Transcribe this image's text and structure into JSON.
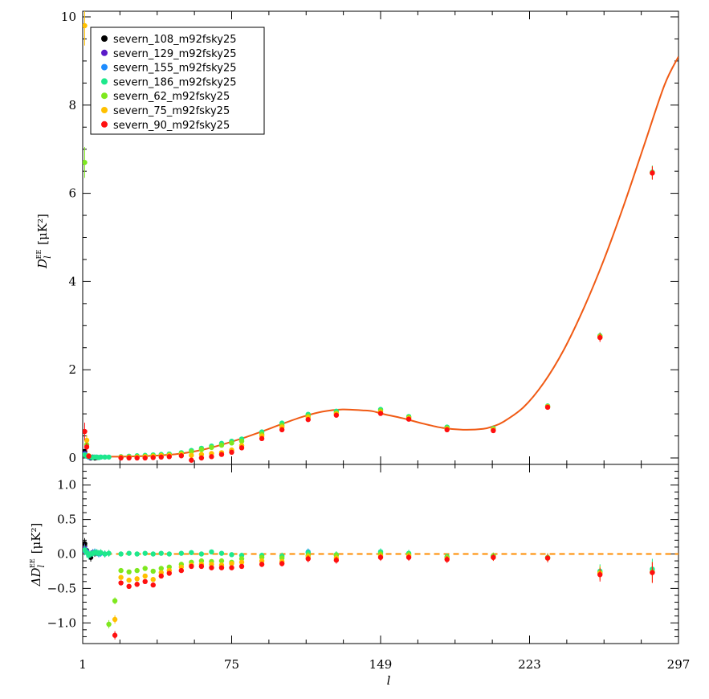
{
  "chart_data": [
    {
      "type": "scatter",
      "panel": "top",
      "ylabel_main": "D",
      "ylabel_sub": "l",
      "ylabel_sup": "EE",
      "ylabel_unit": "[μK²]",
      "xlim": [
        1,
        297
      ],
      "ylim": [
        0,
        10
      ],
      "yticks": [
        0,
        2,
        4,
        6,
        8,
        10
      ],
      "grid": false,
      "legend_position": "top-left",
      "model_curve": {
        "color": "#f05a14",
        "x": [
          1,
          5,
          10,
          20,
          30,
          40,
          50,
          60,
          70,
          80,
          90,
          100,
          110,
          120,
          130,
          140,
          145,
          150,
          160,
          170,
          180,
          190,
          200,
          205,
          210,
          220,
          230,
          240,
          250,
          260,
          270,
          280,
          290,
          297
        ],
        "y": [
          0.05,
          0.03,
          0.03,
          0.03,
          0.04,
          0.06,
          0.1,
          0.18,
          0.3,
          0.44,
          0.6,
          0.77,
          0.93,
          1.05,
          1.1,
          1.08,
          1.06,
          1.0,
          0.9,
          0.78,
          0.68,
          0.64,
          0.66,
          0.72,
          0.82,
          1.15,
          1.7,
          2.45,
          3.4,
          4.5,
          5.75,
          7.1,
          8.45,
          9.1
        ]
      },
      "series": [
        {
          "name": "severn_108_m92fsky25",
          "color": "#000000",
          "x": [
            2,
            3,
            4,
            5,
            6,
            7,
            8
          ],
          "y": [
            0.15,
            0.05,
            0.03,
            0.0,
            0.02,
            0.0,
            0.01
          ],
          "err": [
            0.05,
            0.05,
            0.05,
            0.04,
            0.04,
            0.04,
            0.04
          ]
        },
        {
          "name": "severn_129_m92fsky25",
          "color": "#5a1ac8",
          "x": [
            2,
            3,
            4,
            5,
            6
          ],
          "y": [
            0.1,
            0.04,
            0.02,
            0.01,
            0.02
          ],
          "err": [
            0.05,
            0.05,
            0.05,
            0.04,
            0.04
          ]
        },
        {
          "name": "severn_155_m92fsky25",
          "color": "#1e8cff",
          "x": [
            2,
            3,
            4,
            5,
            6,
            7,
            8,
            9,
            10,
            12
          ],
          "y": [
            0.08,
            0.05,
            0.02,
            0.02,
            0.01,
            0.02,
            0.02,
            0.01,
            0.02,
            0.02
          ],
          "err": [
            0.05,
            0.05,
            0.05,
            0.04,
            0.04,
            0.04,
            0.04,
            0.04,
            0.04,
            0.04
          ]
        },
        {
          "name": "severn_186_m92fsky25",
          "color": "#1ee88c",
          "x": [
            2,
            3,
            4,
            5,
            6,
            7,
            8,
            9,
            10,
            12,
            14,
            20,
            24,
            28,
            32,
            36,
            40,
            44,
            50,
            55,
            60,
            65,
            70,
            75,
            80,
            90,
            100,
            113,
            127,
            149,
            163,
            182,
            205,
            232,
            258,
            284
          ],
          "y": [
            0.07,
            0.04,
            0.03,
            0.02,
            0.01,
            0.02,
            0.02,
            0.01,
            0.02,
            0.02,
            0.02,
            0.03,
            0.04,
            0.05,
            0.06,
            0.07,
            0.08,
            0.09,
            0.12,
            0.17,
            0.22,
            0.27,
            0.33,
            0.38,
            0.43,
            0.59,
            0.79,
            0.99,
            1.06,
            1.1,
            0.94,
            0.7,
            0.67,
            1.18,
            2.77,
            6.48
          ],
          "err": [
            0.05,
            0.05,
            0.05,
            0.04,
            0.04,
            0.04,
            0.04,
            0.04,
            0.04,
            0.04,
            0.04,
            0.03,
            0.03,
            0.03,
            0.03,
            0.03,
            0.03,
            0.03,
            0.03,
            0.03,
            0.03,
            0.03,
            0.03,
            0.03,
            0.03,
            0.03,
            0.04,
            0.04,
            0.04,
            0.04,
            0.04,
            0.04,
            0.04,
            0.05,
            0.08,
            0.15
          ]
        },
        {
          "name": "severn_62_m92fsky25",
          "color": "#7ee81e",
          "x": [
            2,
            3,
            20,
            24,
            28,
            32,
            36,
            40,
            44,
            50,
            55,
            60,
            65,
            70,
            75,
            80,
            90,
            100,
            113,
            127,
            149,
            163,
            182,
            205,
            232,
            258,
            284
          ],
          "y": [
            6.7,
            0.3,
            0.02,
            0.02,
            0.03,
            0.04,
            0.05,
            0.06,
            0.07,
            0.1,
            0.14,
            0.19,
            0.24,
            0.29,
            0.34,
            0.38,
            0.54,
            0.74,
            0.95,
            1.02,
            1.07,
            0.92,
            0.68,
            0.66,
            1.17,
            2.76,
            6.47
          ],
          "err": [
            0.35,
            0.1,
            0.03,
            0.03,
            0.03,
            0.03,
            0.03,
            0.03,
            0.03,
            0.03,
            0.03,
            0.03,
            0.03,
            0.03,
            0.03,
            0.03,
            0.03,
            0.04,
            0.04,
            0.04,
            0.04,
            0.04,
            0.04,
            0.04,
            0.05,
            0.08,
            0.15
          ]
        },
        {
          "name": "severn_75_m92fsky25",
          "color": "#ffc000",
          "x": [
            2,
            3,
            4,
            20,
            24,
            28,
            32,
            36,
            40,
            44,
            50,
            55,
            60,
            65,
            70,
            75,
            80,
            90,
            100,
            113,
            127,
            149,
            163,
            182,
            205,
            232,
            258,
            284
          ],
          "y": [
            9.8,
            0.4,
            0.05,
            0.02,
            0.02,
            0.02,
            0.03,
            0.04,
            0.05,
            0.06,
            0.08,
            0.06,
            0.08,
            0.1,
            0.12,
            0.18,
            0.28,
            0.5,
            0.7,
            0.92,
            1.0,
            1.04,
            0.9,
            0.66,
            0.64,
            1.16,
            2.74,
            6.46
          ],
          "err": [
            0.45,
            0.12,
            0.05,
            0.03,
            0.03,
            0.03,
            0.03,
            0.03,
            0.03,
            0.03,
            0.03,
            0.03,
            0.03,
            0.03,
            0.03,
            0.03,
            0.03,
            0.03,
            0.04,
            0.04,
            0.04,
            0.04,
            0.04,
            0.04,
            0.04,
            0.05,
            0.08,
            0.15
          ]
        },
        {
          "name": "severn_90_m92fsky25",
          "color": "#ff1010",
          "x": [
            2,
            3,
            4,
            20,
            24,
            28,
            32,
            36,
            40,
            44,
            50,
            55,
            60,
            65,
            70,
            75,
            80,
            90,
            100,
            113,
            127,
            149,
            163,
            182,
            205,
            232,
            258,
            284
          ],
          "y": [
            0.6,
            0.25,
            0.04,
            0.0,
            0.0,
            0.0,
            0.0,
            0.01,
            0.02,
            0.03,
            0.05,
            -0.05,
            0.0,
            0.03,
            0.08,
            0.13,
            0.23,
            0.44,
            0.64,
            0.87,
            0.97,
            1.01,
            0.88,
            0.64,
            0.62,
            1.15,
            2.73,
            6.46
          ],
          "err": [
            0.2,
            0.1,
            0.05,
            0.03,
            0.03,
            0.03,
            0.03,
            0.03,
            0.03,
            0.03,
            0.03,
            0.03,
            0.03,
            0.03,
            0.03,
            0.03,
            0.03,
            0.03,
            0.04,
            0.04,
            0.04,
            0.04,
            0.04,
            0.04,
            0.04,
            0.05,
            0.1,
            0.15
          ]
        }
      ]
    },
    {
      "type": "scatter",
      "panel": "bottom",
      "ylabel_main": "ΔD",
      "ylabel_sub": "l",
      "ylabel_sup": "EE",
      "ylabel_unit": "[μK²]",
      "xlabel": "l",
      "xlim": [
        1,
        297
      ],
      "xticks": [
        1,
        75,
        149,
        223,
        297
      ],
      "ylim": [
        -1.3,
        1.3
      ],
      "yticks": [
        -1.0,
        -0.5,
        0.0,
        0.5,
        1.0
      ],
      "ytick_labels": [
        "−1.0",
        "−0.5",
        "0.0",
        "0.5",
        "1.0"
      ],
      "zero_line": {
        "y": 0.0,
        "color": "#ff8c00",
        "style": "dashed"
      },
      "series": [
        {
          "name": "severn_108_m92fsky25",
          "color": "#000000",
          "x": [
            2,
            3,
            4,
            5,
            6,
            7,
            8
          ],
          "y": [
            0.15,
            0.05,
            0.0,
            -0.05,
            0.02,
            0.01,
            0.02
          ],
          "err": [
            0.08,
            0.08,
            0.06,
            0.06,
            0.05,
            0.05,
            0.05
          ]
        },
        {
          "name": "severn_129_m92fsky25",
          "color": "#5a1ac8",
          "x": [
            2,
            3,
            4,
            5,
            6
          ],
          "y": [
            0.08,
            0.04,
            -0.02,
            0.0,
            0.02
          ],
          "err": [
            0.07,
            0.07,
            0.06,
            0.05,
            0.05
          ]
        },
        {
          "name": "severn_155_m92fsky25",
          "color": "#1e8cff",
          "x": [
            2,
            3,
            4,
            5,
            6,
            7,
            8,
            9,
            10,
            12,
            113,
            149
          ],
          "y": [
            0.05,
            0.03,
            -0.01,
            0.0,
            0.01,
            0.03,
            0.02,
            0.0,
            0.01,
            0.0,
            0.03,
            0.03
          ],
          "err": [
            0.07,
            0.07,
            0.06,
            0.05,
            0.05,
            0.05,
            0.05,
            0.05,
            0.05,
            0.05,
            0.05,
            0.05
          ]
        },
        {
          "name": "severn_186_m92fsky25",
          "color": "#1ee88c",
          "x": [
            2,
            3,
            4,
            5,
            6,
            7,
            8,
            9,
            10,
            12,
            14,
            20,
            24,
            28,
            32,
            36,
            40,
            44,
            50,
            55,
            60,
            65,
            70,
            75,
            80,
            90,
            100,
            113,
            127,
            149,
            163,
            182,
            205,
            232,
            258,
            284
          ],
          "y": [
            0.06,
            0.02,
            -0.02,
            0.0,
            0.01,
            0.02,
            0.02,
            0.01,
            0.02,
            0.0,
            0.01,
            0.0,
            0.01,
            0.0,
            0.01,
            0.0,
            0.01,
            0.0,
            0.01,
            0.02,
            0.0,
            0.03,
            0.01,
            -0.01,
            -0.02,
            -0.02,
            -0.03,
            0.02,
            -0.01,
            0.03,
            0.01,
            -0.04,
            -0.03,
            -0.05,
            -0.25,
            -0.22
          ],
          "err": [
            0.07,
            0.07,
            0.06,
            0.05,
            0.05,
            0.05,
            0.05,
            0.05,
            0.05,
            0.05,
            0.05,
            0.03,
            0.03,
            0.03,
            0.03,
            0.03,
            0.03,
            0.03,
            0.03,
            0.03,
            0.03,
            0.03,
            0.03,
            0.03,
            0.04,
            0.04,
            0.05,
            0.05,
            0.05,
            0.05,
            0.05,
            0.05,
            0.05,
            0.06,
            0.1,
            0.15
          ]
        },
        {
          "name": "severn_62_m92fsky25",
          "color": "#7ee81e",
          "x": [
            14,
            17,
            20,
            24,
            28,
            32,
            36,
            40,
            44,
            50,
            55,
            60,
            65,
            70,
            75,
            80,
            90,
            100,
            113,
            127,
            149,
            163,
            182,
            205,
            232,
            258,
            284
          ],
          "y": [
            -1.02,
            -0.68,
            -0.24,
            -0.26,
            -0.24,
            -0.21,
            -0.25,
            -0.21,
            -0.19,
            -0.15,
            -0.12,
            -0.1,
            -0.11,
            -0.1,
            -0.12,
            -0.07,
            -0.05,
            -0.06,
            -0.02,
            -0.02,
            0.0,
            -0.01,
            -0.05,
            -0.03,
            -0.05,
            -0.27,
            -0.26
          ],
          "err": [
            0.06,
            0.05,
            0.03,
            0.03,
            0.03,
            0.03,
            0.03,
            0.03,
            0.03,
            0.03,
            0.03,
            0.03,
            0.03,
            0.03,
            0.03,
            0.04,
            0.04,
            0.05,
            0.05,
            0.05,
            0.05,
            0.05,
            0.05,
            0.05,
            0.06,
            0.1,
            0.15
          ]
        },
        {
          "name": "severn_75_m92fsky25",
          "color": "#ffc000",
          "x": [
            17,
            20,
            24,
            28,
            32,
            36,
            40,
            44,
            50,
            55,
            60,
            65,
            70,
            75,
            80,
            90,
            100,
            113,
            127,
            149,
            163,
            182,
            205,
            232,
            258,
            284
          ],
          "y": [
            -0.95,
            -0.34,
            -0.38,
            -0.36,
            -0.32,
            -0.37,
            -0.27,
            -0.24,
            -0.19,
            -0.16,
            -0.15,
            -0.15,
            -0.16,
            -0.14,
            -0.12,
            -0.1,
            -0.11,
            -0.04,
            -0.06,
            -0.03,
            -0.03,
            -0.07,
            -0.05,
            -0.06,
            -0.28,
            -0.27
          ],
          "err": [
            0.06,
            0.03,
            0.03,
            0.03,
            0.03,
            0.03,
            0.03,
            0.03,
            0.03,
            0.03,
            0.03,
            0.03,
            0.03,
            0.03,
            0.03,
            0.04,
            0.04,
            0.05,
            0.05,
            0.05,
            0.05,
            0.05,
            0.05,
            0.06,
            0.1,
            0.15
          ]
        },
        {
          "name": "severn_90_m92fsky25",
          "color": "#ff1010",
          "x": [
            17,
            20,
            24,
            28,
            32,
            36,
            40,
            44,
            50,
            55,
            60,
            65,
            70,
            75,
            80,
            90,
            100,
            113,
            127,
            149,
            163,
            182,
            205,
            232,
            258,
            284
          ],
          "y": [
            -1.18,
            -0.42,
            -0.47,
            -0.44,
            -0.4,
            -0.45,
            -0.32,
            -0.28,
            -0.24,
            -0.18,
            -0.18,
            -0.2,
            -0.2,
            -0.2,
            -0.18,
            -0.15,
            -0.14,
            -0.07,
            -0.09,
            -0.05,
            -0.05,
            -0.08,
            -0.05,
            -0.06,
            -0.3,
            -0.27
          ],
          "err": [
            0.06,
            0.03,
            0.03,
            0.03,
            0.03,
            0.03,
            0.03,
            0.03,
            0.03,
            0.03,
            0.03,
            0.03,
            0.03,
            0.03,
            0.03,
            0.04,
            0.04,
            0.05,
            0.05,
            0.05,
            0.05,
            0.05,
            0.05,
            0.06,
            0.1,
            0.15
          ]
        }
      ]
    }
  ]
}
